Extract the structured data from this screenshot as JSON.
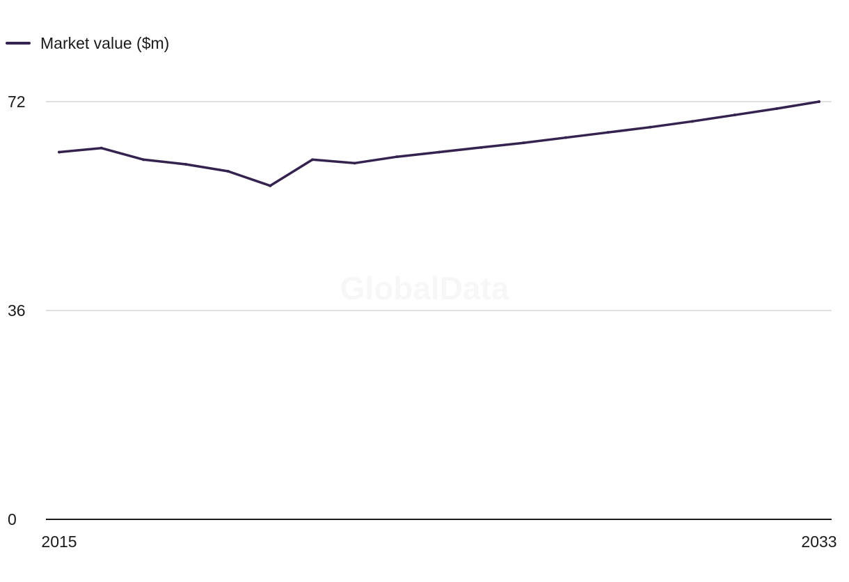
{
  "chart_data": {
    "type": "line",
    "title": "",
    "xlabel": "",
    "ylabel": "",
    "x": [
      2015,
      2016,
      2017,
      2018,
      2019,
      2020,
      2021,
      2022,
      2023,
      2024,
      2025,
      2026,
      2027,
      2028,
      2029,
      2030,
      2031,
      2032,
      2033
    ],
    "series": [
      {
        "name": "Market value ($m)",
        "values": [
          63.3,
          64.0,
          62.0,
          61.2,
          60.0,
          57.5,
          62.0,
          61.4,
          62.5,
          63.3,
          64.1,
          64.9,
          65.8,
          66.7,
          67.6,
          68.6,
          69.7,
          70.8,
          72.0
        ]
      }
    ],
    "xlim": [
      2015,
      2033
    ],
    "ylim": [
      0,
      72
    ],
    "y_ticks": [
      "0",
      "36",
      "72"
    ],
    "x_ticks": [
      "2015",
      "2033"
    ],
    "grid": true,
    "legend": "top-left",
    "colors": {
      "line": "#35234f",
      "grid": "#d6d6d6",
      "axis": "#1a1a1a"
    }
  },
  "watermark": "GlobalData"
}
